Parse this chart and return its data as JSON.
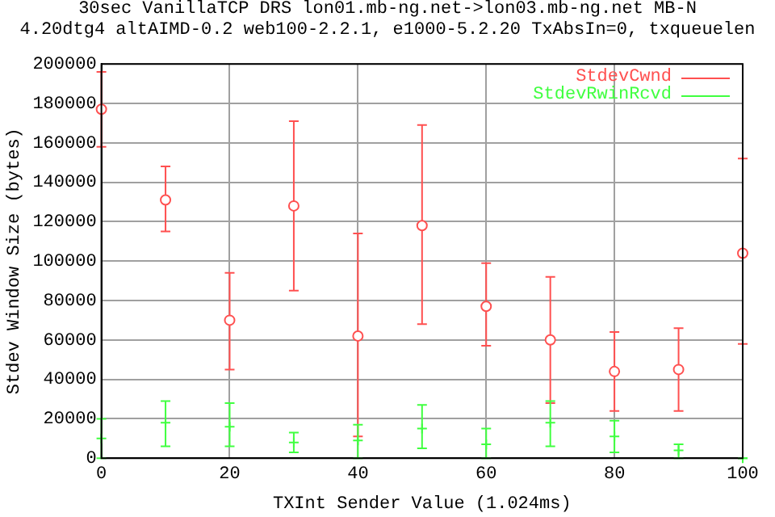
{
  "chart_data": {
    "type": "scatter",
    "title": "30sec VanillaTCP DRS lon01.mb-ng.net->lon03.mb-ng.net MB-N",
    "subtitle": "4.20dtg4 altAIMD-0.2 web100-2.2.1, e1000-5.2.20 TxAbsIn=0, txqueuelen",
    "xlabel": "TXInt Sender Value (1.024ms)",
    "ylabel": "Stdev Window Size (bytes)",
    "x": [
      0,
      10,
      20,
      30,
      40,
      50,
      60,
      70,
      80,
      90,
      100
    ],
    "series": [
      {
        "name": "StdevCwnd",
        "color": "#ff5050",
        "marker": "circle",
        "values": [
          177000,
          131000,
          70000,
          128000,
          62000,
          118000,
          77000,
          60000,
          44000,
          45000,
          104000
        ],
        "errors": [
          [
            158000,
            196000
          ],
          [
            115000,
            148000
          ],
          [
            45000,
            94000
          ],
          [
            85000,
            171000
          ],
          [
            11000,
            114000
          ],
          [
            68000,
            169000
          ],
          [
            57000,
            99000
          ],
          [
            28000,
            92000
          ],
          [
            24000,
            64000
          ],
          [
            24000,
            66000
          ],
          [
            58000,
            152000
          ]
        ]
      },
      {
        "name": "StdevRwinRcvd",
        "color": "#40ff40",
        "marker": "cross",
        "values": [
          10000,
          18000,
          16000,
          8000,
          9000,
          15000,
          7000,
          18000,
          11000,
          4000,
          0
        ],
        "errors": [
          [
            0,
            20000
          ],
          [
            6000,
            29000
          ],
          [
            6000,
            28000
          ],
          [
            3000,
            13000
          ],
          [
            0,
            17000
          ],
          [
            5000,
            27000
          ],
          [
            0,
            15000
          ],
          [
            6000,
            29000
          ],
          [
            3000,
            19000
          ],
          [
            0,
            7000
          ],
          [
            0,
            0
          ]
        ]
      }
    ],
    "xlim": [
      0,
      100
    ],
    "xticks": [
      0,
      20,
      40,
      60,
      80,
      100
    ],
    "ylim": [
      0,
      200000
    ],
    "yticks": [
      0,
      20000,
      40000,
      60000,
      80000,
      100000,
      120000,
      140000,
      160000,
      180000,
      200000
    ],
    "grid": true,
    "legend": "top right"
  }
}
